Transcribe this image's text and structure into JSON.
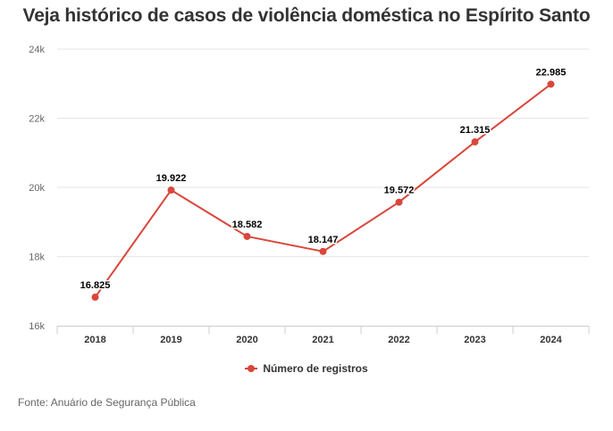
{
  "chart_data": {
    "type": "line",
    "title": "Veja histórico de casos de violência doméstica no Espírito Santo",
    "categories": [
      "2018",
      "2019",
      "2020",
      "2021",
      "2022",
      "2023",
      "2024"
    ],
    "series": [
      {
        "name": "Número de registros",
        "values": [
          16825,
          19922,
          18582,
          18147,
          19572,
          21315,
          22985
        ],
        "labels": [
          "16.825",
          "19.922",
          "18.582",
          "18.147",
          "19.572",
          "21.315",
          "22.985"
        ],
        "color": "#d9463b"
      }
    ],
    "ylim": [
      16000,
      24000
    ],
    "yticks": [
      16000,
      18000,
      20000,
      22000,
      24000
    ],
    "ytick_labels": [
      "16k",
      "18k",
      "20k",
      "22k",
      "24k"
    ],
    "xlabel": "",
    "ylabel": "",
    "grid": true,
    "legend_position": "bottom"
  },
  "source": "Fonte: Anuário de Segurança Pública"
}
